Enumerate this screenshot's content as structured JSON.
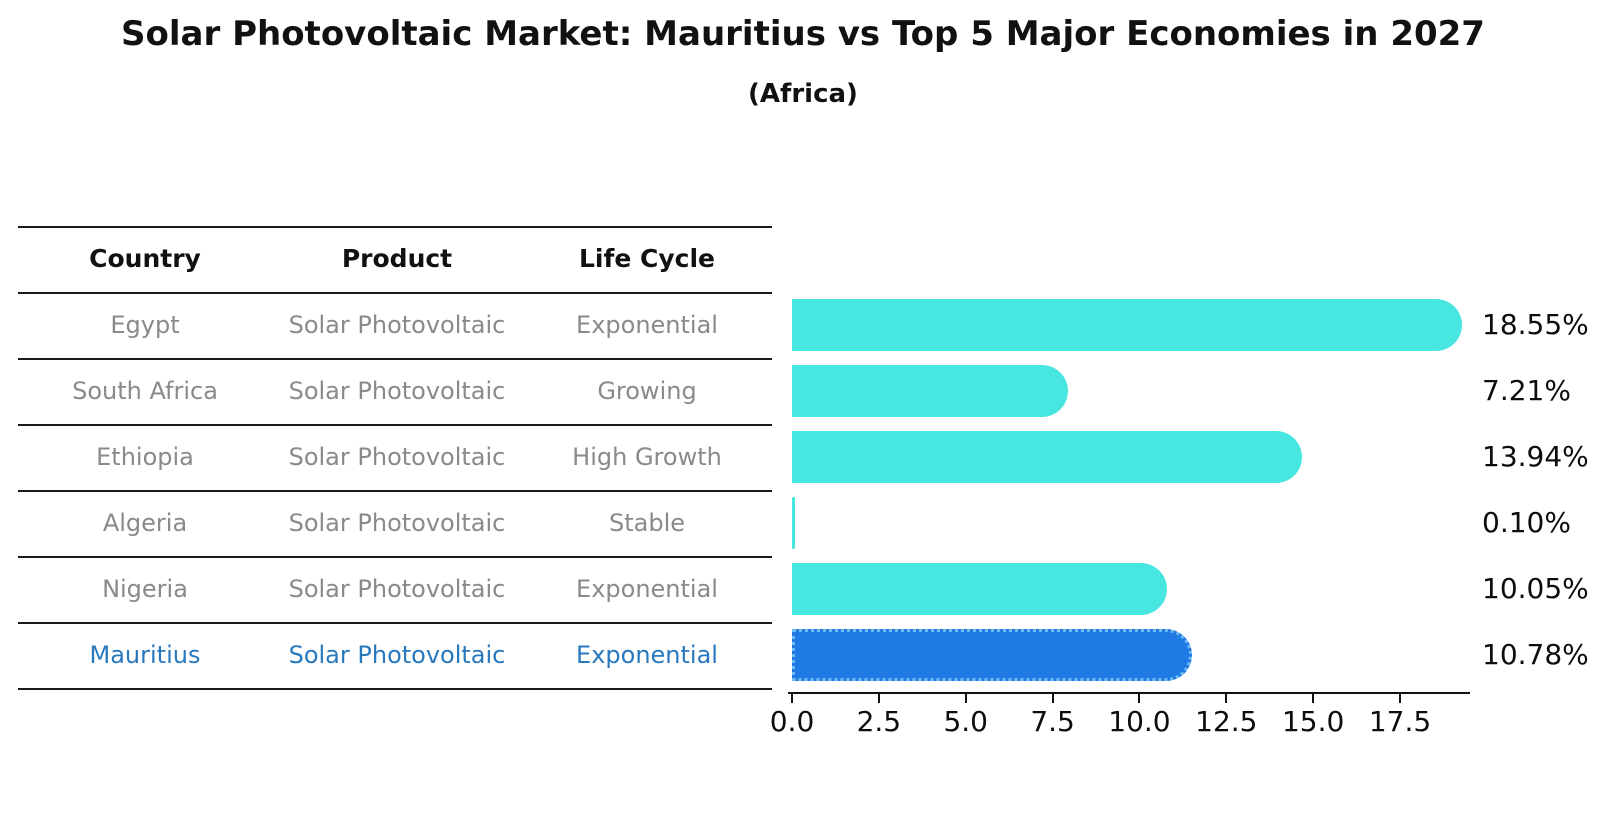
{
  "title": "Solar Photovoltaic Market: Mauritius vs Top 5 Major Economies in 2027",
  "subtitle": "(Africa)",
  "table": {
    "headers": [
      "Country",
      "Product",
      "Life Cycle"
    ],
    "rows": [
      {
        "country": "Egypt",
        "product": "Solar Photovoltaic",
        "life_cycle": "Exponential",
        "highlight": false
      },
      {
        "country": "South Africa",
        "product": "Solar Photovoltaic",
        "life_cycle": "Growing",
        "highlight": false
      },
      {
        "country": "Ethiopia",
        "product": "Solar Photovoltaic",
        "life_cycle": "High Growth",
        "highlight": false
      },
      {
        "country": "Algeria",
        "product": "Solar Photovoltaic",
        "life_cycle": "Stable",
        "highlight": false
      },
      {
        "country": "Nigeria",
        "product": "Solar Photovoltaic",
        "life_cycle": "Exponential",
        "highlight": false
      },
      {
        "country": "Mauritius",
        "product": "Solar Photovoltaic",
        "life_cycle": "Exponential",
        "highlight": true
      }
    ]
  },
  "chart_data": {
    "type": "bar",
    "orientation": "horizontal",
    "title": "Solar Photovoltaic Market: Mauritius vs Top 5 Major Economies in 2027",
    "subtitle": "(Africa)",
    "categories": [
      "Egypt",
      "South Africa",
      "Ethiopia",
      "Algeria",
      "Nigeria",
      "Mauritius"
    ],
    "values": [
      18.55,
      7.21,
      13.94,
      0.1,
      10.05,
      10.78
    ],
    "value_labels": [
      "18.55%",
      "7.21%",
      "13.94%",
      "0.10%",
      "10.05%",
      "10.78%"
    ],
    "x_ticks": [
      "0.0",
      "2.5",
      "5.0",
      "7.5",
      "10.0",
      "12.5",
      "15.0",
      "17.5"
    ],
    "x_tick_values": [
      0,
      2.5,
      5,
      7.5,
      10,
      12.5,
      15,
      17.5
    ],
    "xlim": [
      0,
      19.5
    ],
    "xlabel": "",
    "ylabel": "",
    "grid": false,
    "legend": false,
    "highlight_index": 5,
    "colors": {
      "bar": "#48e6e1",
      "highlight_bar": "#1f7be3",
      "highlight_bar_border": "#6fbcf5",
      "highlight_text": "#2878be",
      "table_text": "#8a8a8a",
      "text": "#0d0d0d"
    }
  }
}
